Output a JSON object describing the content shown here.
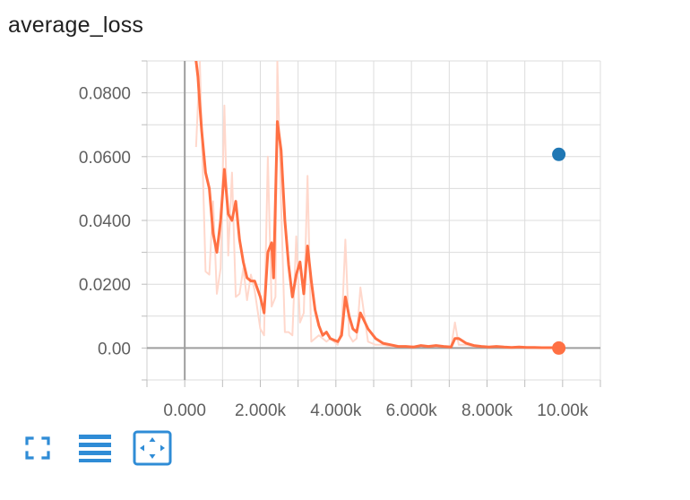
{
  "card": {
    "title": "average_loss"
  },
  "toolbar": {
    "buttons": [
      {
        "icon": "fullscreen-icon",
        "action": "expand"
      },
      {
        "icon": "list-lines-icon",
        "action": "toggle-y-log"
      },
      {
        "icon": "fit-domain-icon",
        "action": "fit-domain"
      }
    ],
    "accent_color": "#2f8cd6"
  },
  "chart_data": {
    "type": "line",
    "title": "average_loss",
    "xlabel": "",
    "ylabel": "",
    "xlim": [
      -1000,
      11000
    ],
    "ylim": [
      -0.01,
      0.09
    ],
    "x_ticks": [
      0,
      2000,
      4000,
      6000,
      8000,
      10000
    ],
    "x_tick_labels": [
      "0.000",
      "2.000k",
      "4.000k",
      "6.000k",
      "8.000k",
      "10.00k"
    ],
    "y_ticks": [
      0.0,
      0.02,
      0.04,
      0.06,
      0.08
    ],
    "y_tick_labels": [
      "0.00",
      "0.0200",
      "0.0400",
      "0.0600",
      "0.0800"
    ],
    "grid": true,
    "series": [
      {
        "color": "#ff7043",
        "raw_color": "#ffd8cc",
        "smoothed": {
          "x": [
            300,
            350,
            400,
            450,
            550,
            650,
            750,
            850,
            950,
            1050,
            1150,
            1250,
            1350,
            1450,
            1550,
            1650,
            1750,
            1850,
            2000,
            2100,
            2200,
            2300,
            2350,
            2450,
            2550,
            2650,
            2750,
            2850,
            2950,
            3050,
            3150,
            3250,
            3350,
            3450,
            3550,
            3650,
            3750,
            3850,
            4050,
            4150,
            4250,
            4350,
            4450,
            4550,
            4650,
            4850,
            5050,
            5250,
            5450,
            5650,
            5850,
            6050,
            6250,
            6450,
            6650,
            6850,
            7050,
            7150,
            7250,
            7450,
            7650,
            7850,
            8050,
            8250,
            8450,
            8650,
            8850,
            9050,
            9250,
            9450,
            9650,
            9850
          ],
          "y": [
            0.09,
            0.085,
            0.076,
            0.068,
            0.055,
            0.05,
            0.036,
            0.03,
            0.04,
            0.056,
            0.042,
            0.04,
            0.046,
            0.034,
            0.027,
            0.022,
            0.021,
            0.021,
            0.016,
            0.011,
            0.03,
            0.033,
            0.022,
            0.071,
            0.062,
            0.04,
            0.026,
            0.016,
            0.023,
            0.027,
            0.017,
            0.032,
            0.021,
            0.012,
            0.007,
            0.004,
            0.005,
            0.003,
            0.002,
            0.004,
            0.016,
            0.01,
            0.006,
            0.005,
            0.011,
            0.006,
            0.003,
            0.0015,
            0.001,
            0.0005,
            0.0005,
            0.0003,
            0.0008,
            0.0005,
            0.0008,
            0.0005,
            0.0003,
            0.003,
            0.003,
            0.0015,
            0.0008,
            0.0005,
            0.0003,
            0.0005,
            0.0003,
            0.0002,
            0.0003,
            0.0002,
            0.0002,
            0.0001,
            0.0001,
            0.0001
          ]
        },
        "raw": {
          "x": [
            300,
            400,
            550,
            650,
            750,
            850,
            950,
            1050,
            1150,
            1250,
            1350,
            1450,
            1550,
            1650,
            1750,
            1850,
            2000,
            2100,
            2200,
            2300,
            2400,
            2450,
            2550,
            2650,
            2750,
            2850,
            2950,
            3050,
            3150,
            3250,
            3350,
            3450,
            3550,
            3650,
            3750,
            3850,
            4050,
            4150,
            4250,
            4350,
            4450,
            4550,
            4650,
            4850,
            5050,
            5250,
            5450,
            5650,
            5850,
            6050,
            6250,
            6450,
            6650,
            6850,
            7050,
            7150,
            7250,
            7450,
            7650,
            7850,
            8050,
            8250,
            8450,
            8650,
            8850,
            9050,
            9250,
            9450,
            9650,
            9850
          ],
          "y": [
            0.063,
            0.09,
            0.024,
            0.023,
            0.046,
            0.017,
            0.025,
            0.076,
            0.029,
            0.055,
            0.016,
            0.017,
            0.025,
            0.015,
            0.023,
            0.018,
            0.006,
            0.004,
            0.06,
            0.013,
            0.016,
            0.09,
            0.045,
            0.005,
            0.005,
            0.004,
            0.035,
            0.008,
            0.011,
            0.054,
            0.002,
            0.003,
            0.004,
            0.003,
            0.002,
            0.003,
            0.001,
            0.006,
            0.034,
            0.004,
            0.002,
            0.003,
            0.019,
            0.002,
            0.001,
            0.001,
            0.0005,
            0.0005,
            0.0005,
            0.0005,
            0.0008,
            0.0005,
            0.0005,
            0.0005,
            0.0003,
            0.008,
            0.001,
            0.001,
            0.0005,
            0.0005,
            0.0003,
            0.0005,
            0.0003,
            0.0002,
            0.0003,
            0.0002,
            0.0002,
            0.0001,
            0.0001,
            0.0001
          ]
        },
        "last_point": {
          "x": 9900,
          "y": 0.0
        }
      },
      {
        "color": "#1f77b4",
        "points": [
          {
            "x": 9900,
            "y": 0.0607
          }
        ]
      }
    ]
  }
}
